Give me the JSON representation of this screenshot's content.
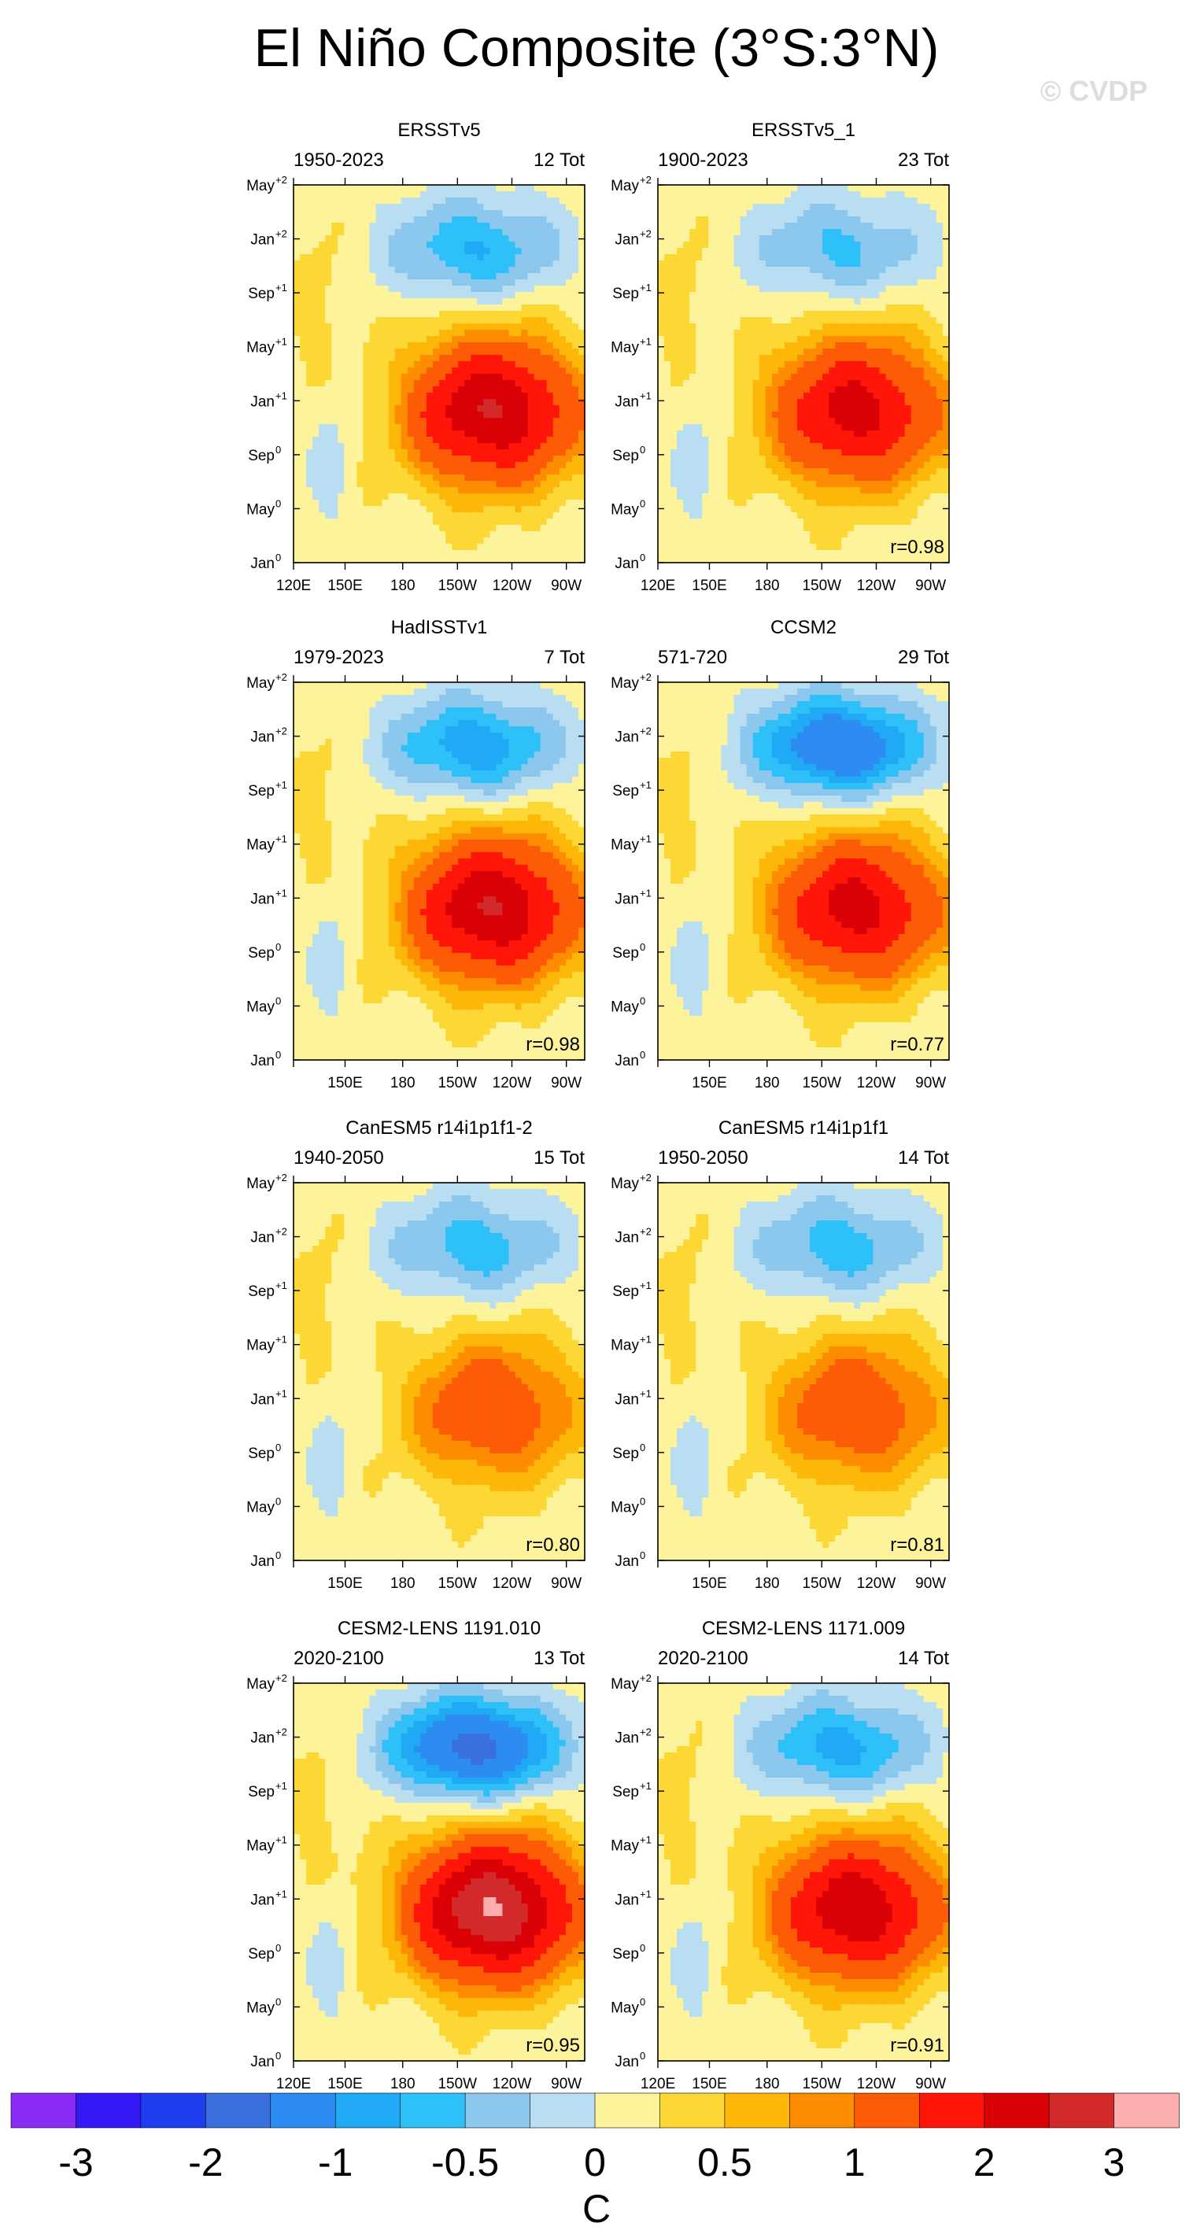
{
  "figure": {
    "title": "El Niño Composite (3°S:3°N)",
    "watermark": "© CVDP"
  },
  "chart_data": {
    "type": "heatmap",
    "description_units": "SST anomaly composite, Hovmöller (longitude vs time)",
    "x_ticks": [
      "120E",
      "150E",
      "180",
      "150W",
      "120W",
      "90W"
    ],
    "x_range_deg_east": [
      120,
      280
    ],
    "y_ticks": [
      {
        "base": "Jan",
        "sup": "0"
      },
      {
        "base": "May",
        "sup": "0"
      },
      {
        "base": "Sep",
        "sup": "0"
      },
      {
        "base": "Jan",
        "sup": "+1"
      },
      {
        "base": "May",
        "sup": "+1"
      },
      {
        "base": "Sep",
        "sup": "+1"
      },
      {
        "base": "Jan",
        "sup": "+2"
      },
      {
        "base": "May",
        "sup": "+2"
      }
    ],
    "panels": [
      {
        "title": "ERSSTv5",
        "years": "1950-2023",
        "count": "12 Tot",
        "r": "",
        "peak": 2.4,
        "cold": -0.9,
        "show120E": true
      },
      {
        "title": "ERSSTv5_1",
        "years": "1900-2023",
        "count": "23 Tot",
        "r": "r=0.98",
        "peak": 2.1,
        "cold": -0.7,
        "show120E": true
      },
      {
        "title": "HadISSTv1",
        "years": "1979-2023",
        "count": "7 Tot",
        "r": "r=0.98",
        "peak": 2.4,
        "cold": -1.1,
        "show120E": false
      },
      {
        "title": "CCSM2",
        "years": "571-720",
        "count": "29 Tot",
        "r": "r=0.77",
        "peak": 2.1,
        "cold": -1.6,
        "show120E": false
      },
      {
        "title": "CanESM5 r14i1p1f1-2",
        "years": "1940-2050",
        "count": "15 Tot",
        "r": "r=0.80",
        "peak": 1.3,
        "cold": -0.8,
        "show120E": false
      },
      {
        "title": "CanESM5 r14i1p1f1",
        "years": "1950-2050",
        "count": "14 Tot",
        "r": "r=0.81",
        "peak": 1.3,
        "cold": -0.8,
        "show120E": false
      },
      {
        "title": "CESM2-LENS 1191.010",
        "years": "2020-2100",
        "count": "13 Tot",
        "r": "r=0.95",
        "peak": 2.9,
        "cold": -1.8,
        "show120E": true
      },
      {
        "title": "CESM2-LENS 1171.009",
        "years": "2020-2100",
        "count": "14 Tot",
        "r": "r=0.91",
        "peak": 2.3,
        "cold": -1.0,
        "show120E": true
      }
    ],
    "colorbar": {
      "levels": [
        -3,
        -2.5,
        -2,
        -1.5,
        -1,
        -0.75,
        -0.5,
        -0.25,
        0,
        0.25,
        0.5,
        0.75,
        1,
        1.5,
        2,
        2.5,
        3
      ],
      "colors": [
        "#8b2cf5",
        "#3518f7",
        "#1f3ef0",
        "#3a6fde",
        "#2c8cf2",
        "#20aaf5",
        "#2ec1f9",
        "#8cc8ee",
        "#b9def2",
        "#fdf39b",
        "#fdd835",
        "#fdb709",
        "#fd8c00",
        "#fe5b07",
        "#ff1608",
        "#da0106",
        "#d22a2a",
        "#fcadad"
      ],
      "labels": [
        "-3",
        "-2",
        "-1",
        "-0.5",
        "0",
        "0.5",
        "1",
        "2",
        "3"
      ],
      "unit": "C"
    }
  }
}
